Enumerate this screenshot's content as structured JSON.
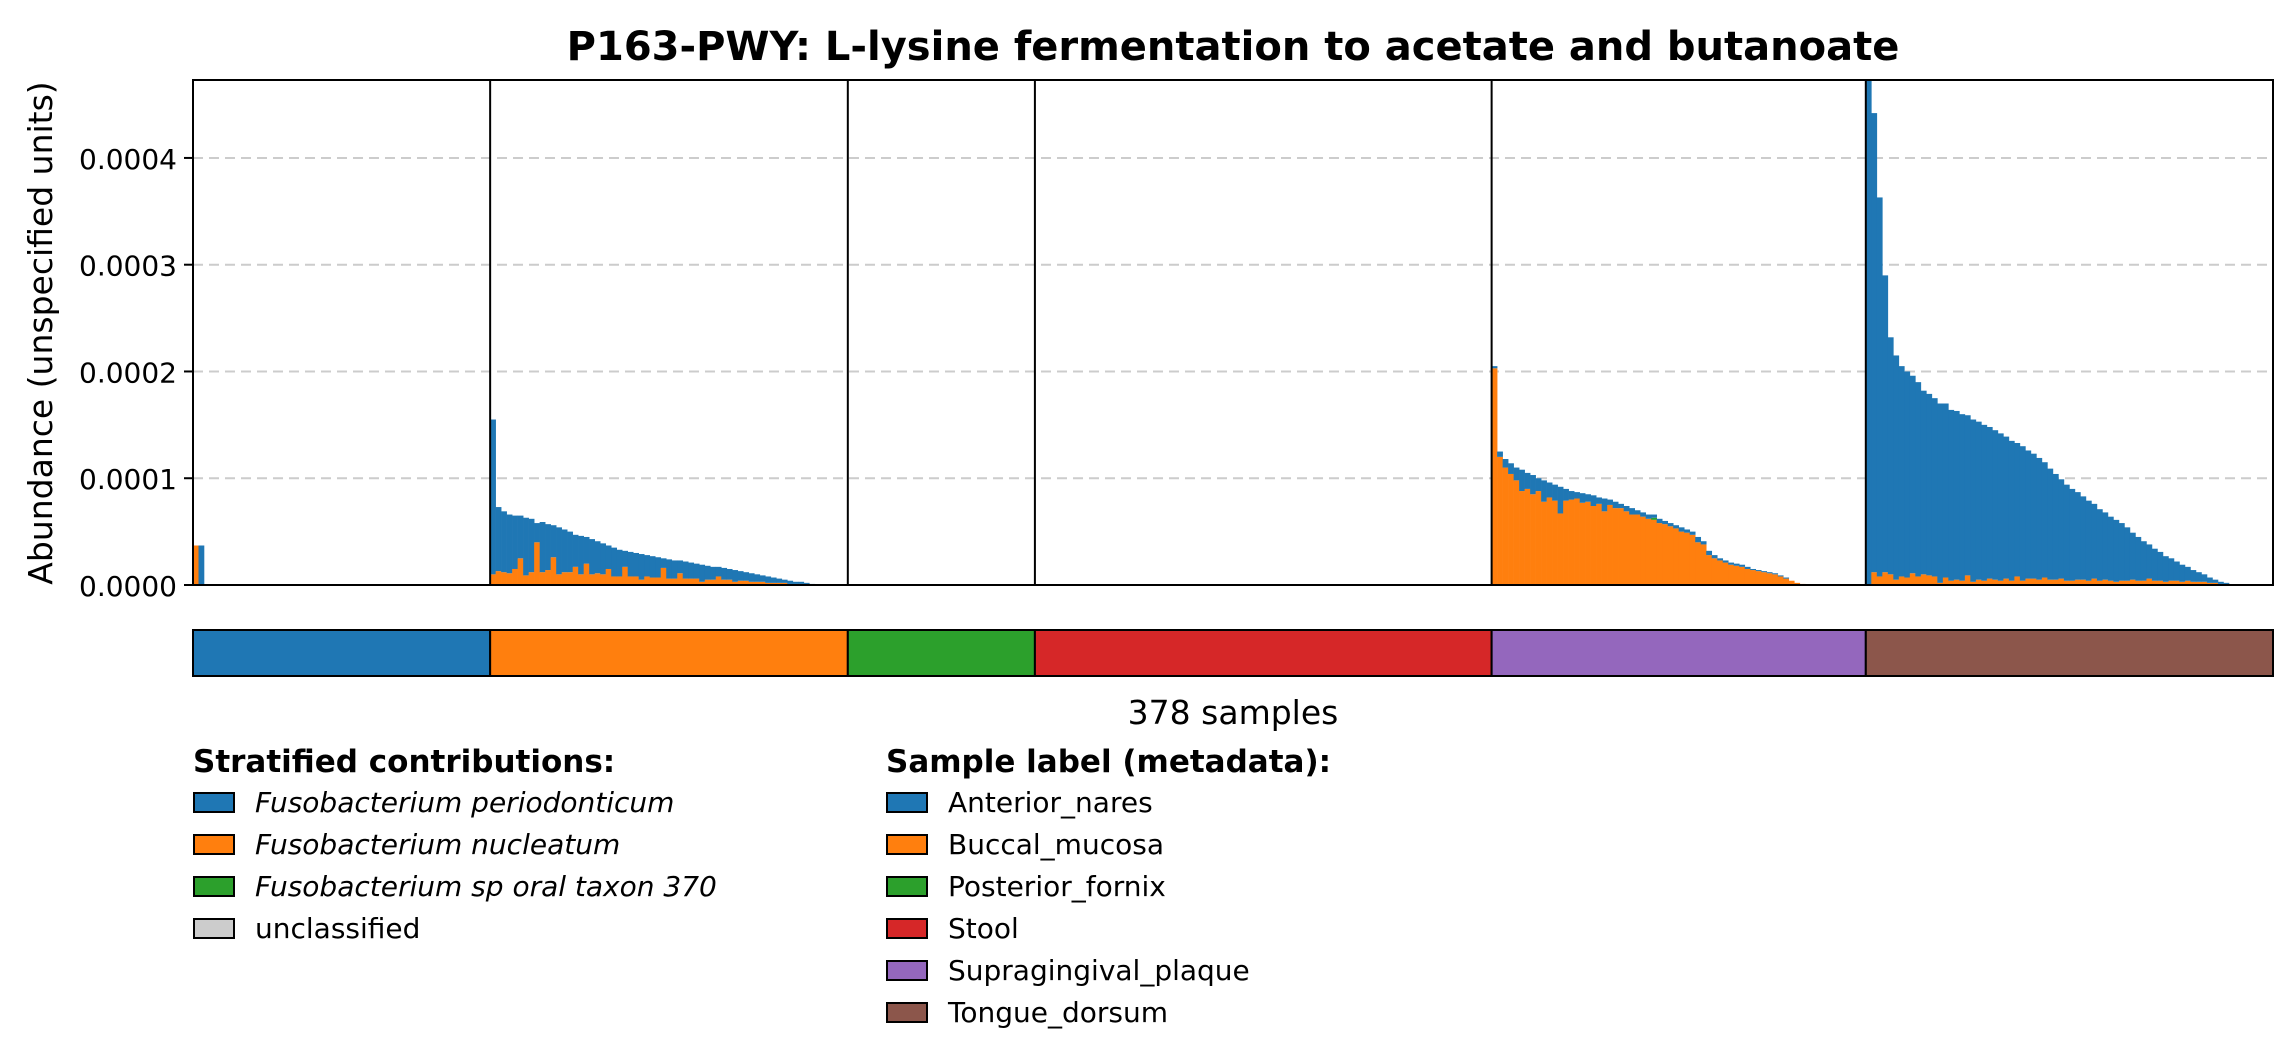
{
  "chart_data": {
    "type": "bar",
    "title": "P163-PWY: L-lysine fermentation to acetate and butanoate",
    "ylabel": "Abundance (unspecified units)",
    "xlabel": "378 samples",
    "ylim": [
      0,
      0.000473
    ],
    "yticks": [
      "0.0000",
      "0.0001",
      "0.0002",
      "0.0003",
      "0.0004"
    ],
    "grid": "y dashed",
    "stacked": true,
    "n_samples": 378,
    "legends": {
      "stratified_title": "Stratified contributions:",
      "metadata_title": "Sample label (metadata):"
    },
    "series": [
      {
        "name": "Fusobacterium periodonticum",
        "color": "#1f77b4",
        "italic": true
      },
      {
        "name": "Fusobacterium nucleatum",
        "color": "#ff7f0e",
        "italic": true
      },
      {
        "name": "Fusobacterium sp oral taxon 370",
        "color": "#2ca02c",
        "italic": true
      },
      {
        "name": "unclassified",
        "color": "#cccccc",
        "italic": false
      }
    ],
    "groups": [
      {
        "label": "Anterior_nares",
        "color": "#1f77b4",
        "n_samples": 54,
        "samples": [
          {
            "periodonticum": 0.0,
            "nucleatum": 3.7e-05
          },
          {
            "periodonticum": 3.7e-05,
            "nucleatum": 0.0
          }
        ]
      },
      {
        "label": "Buccal_mucosa",
        "color": "#ff7f0e",
        "n_samples": 65,
        "samples": [
          {
            "periodonticum": 0.000145,
            "nucleatum": 1e-05
          },
          {
            "periodonticum": 6e-05,
            "nucleatum": 1.3e-05
          },
          {
            "periodonticum": 5.7e-05,
            "nucleatum": 1.2e-05
          },
          {
            "periodonticum": 5.5e-05,
            "nucleatum": 1.1e-05
          },
          {
            "periodonticum": 5e-05,
            "nucleatum": 1.5e-05
          },
          {
            "periodonticum": 4e-05,
            "nucleatum": 2.5e-05
          },
          {
            "periodonticum": 5.4e-05,
            "nucleatum": 9e-06
          },
          {
            "periodonticum": 5e-05,
            "nucleatum": 1.2e-05
          },
          {
            "periodonticum": 1.8e-05,
            "nucleatum": 4e-05
          },
          {
            "periodonticum": 4.7e-05,
            "nucleatum": 1.2e-05
          },
          {
            "periodonticum": 4.3e-05,
            "nucleatum": 1.4e-05
          },
          {
            "periodonticum": 3e-05,
            "nucleatum": 2.6e-05
          },
          {
            "periodonticum": 4.4e-05,
            "nucleatum": 1e-05
          },
          {
            "periodonticum": 4e-05,
            "nucleatum": 1.2e-05
          },
          {
            "periodonticum": 3.8e-05,
            "nucleatum": 1.2e-05
          },
          {
            "periodonticum": 3e-05,
            "nucleatum": 1.7e-05
          },
          {
            "periodonticum": 3.6e-05,
            "nucleatum": 1e-05
          },
          {
            "periodonticum": 2.5e-05,
            "nucleatum": 2e-05
          },
          {
            "periodonticum": 3.3e-05,
            "nucleatum": 1e-05
          },
          {
            "periodonticum": 3e-05,
            "nucleatum": 1.1e-05
          },
          {
            "periodonticum": 2.9e-05,
            "nucleatum": 1e-05
          },
          {
            "periodonticum": 2.2e-05,
            "nucleatum": 1.5e-05
          },
          {
            "periodonticum": 2.7e-05,
            "nucleatum": 8e-06
          },
          {
            "periodonticum": 2.5e-05,
            "nucleatum": 8e-06
          },
          {
            "periodonticum": 1.5e-05,
            "nucleatum": 1.7e-05
          },
          {
            "periodonticum": 2.3e-05,
            "nucleatum": 8e-06
          },
          {
            "periodonticum": 2.2e-05,
            "nucleatum": 8e-06
          },
          {
            "periodonticum": 2.4e-05,
            "nucleatum": 5e-06
          },
          {
            "periodonticum": 2e-05,
            "nucleatum": 8e-06
          },
          {
            "periodonticum": 2e-05,
            "nucleatum": 7e-06
          },
          {
            "periodonticum": 1.9e-05,
            "nucleatum": 7e-06
          },
          {
            "periodonticum": 9e-06,
            "nucleatum": 1.6e-05
          },
          {
            "periodonticum": 1.8e-05,
            "nucleatum": 6e-06
          },
          {
            "periodonticum": 1.7e-05,
            "nucleatum": 6e-06
          },
          {
            "periodonticum": 1.2e-05,
            "nucleatum": 1.1e-05
          },
          {
            "periodonticum": 1.6e-05,
            "nucleatum": 6e-06
          },
          {
            "periodonticum": 1.5e-05,
            "nucleatum": 6e-06
          },
          {
            "periodonticum": 1.4e-05,
            "nucleatum": 6e-06
          },
          {
            "periodonticum": 1.6e-05,
            "nucleatum": 3e-06
          },
          {
            "periodonticum": 1.3e-05,
            "nucleatum": 5e-06
          },
          {
            "periodonticum": 1.2e-05,
            "nucleatum": 5e-06
          },
          {
            "periodonticum": 9e-06,
            "nucleatum": 8e-06
          },
          {
            "periodonticum": 1.1e-05,
            "nucleatum": 5e-06
          },
          {
            "periodonticum": 1e-05,
            "nucleatum": 5e-06
          },
          {
            "periodonticum": 1.1e-05,
            "nucleatum": 3e-06
          },
          {
            "periodonticum": 9e-06,
            "nucleatum": 4e-06
          },
          {
            "periodonticum": 8e-06,
            "nucleatum": 4e-06
          },
          {
            "periodonticum": 8e-06,
            "nucleatum": 3e-06
          },
          {
            "periodonticum": 7e-06,
            "nucleatum": 3e-06
          },
          {
            "periodonticum": 6e-06,
            "nucleatum": 3e-06
          },
          {
            "periodonticum": 6e-06,
            "nucleatum": 2e-06
          },
          {
            "periodonticum": 5e-06,
            "nucleatum": 2e-06
          },
          {
            "periodonticum": 4e-06,
            "nucleatum": 2e-06
          },
          {
            "periodonticum": 3e-06,
            "nucleatum": 2e-06
          },
          {
            "periodonticum": 3e-06,
            "nucleatum": 1e-06
          },
          {
            "periodonticum": 2e-06,
            "nucleatum": 1e-06
          },
          {
            "periodonticum": 2e-06,
            "nucleatum": 1e-06
          },
          {
            "periodonticum": 1e-06,
            "nucleatum": 1e-06
          },
          {
            "periodonticum": 1e-06,
            "nucleatum": 0.0
          }
        ]
      },
      {
        "label": "Posterior_fornix",
        "color": "#2ca02c",
        "n_samples": 34,
        "samples": []
      },
      {
        "label": "Stool",
        "color": "#d62728",
        "n_samples": 83,
        "samples": []
      },
      {
        "label": "Supragingival_plaque",
        "color": "#9467bd",
        "n_samples": 68,
        "samples": [
          {
            "periodonticum": 2e-06,
            "nucleatum": 0.000203
          },
          {
            "periodonticum": 5e-06,
            "nucleatum": 0.00012
          },
          {
            "periodonticum": 8e-06,
            "nucleatum": 0.00011
          },
          {
            "periodonticum": 1e-05,
            "nucleatum": 0.000104
          },
          {
            "periodonticum": 1.2e-05,
            "nucleatum": 9.8e-05
          },
          {
            "periodonticum": 2e-05,
            "nucleatum": 8.8e-05
          },
          {
            "periodonticum": 1.5e-05,
            "nucleatum": 9e-05
          },
          {
            "periodonticum": 1.8e-05,
            "nucleatum": 8.5e-05
          },
          {
            "periodonticum": 1.2e-05,
            "nucleatum": 8.8e-05
          },
          {
            "periodonticum": 2e-05,
            "nucleatum": 7.8e-05
          },
          {
            "periodonticum": 1.4e-05,
            "nucleatum": 8.2e-05
          },
          {
            "periodonticum": 1.5e-05,
            "nucleatum": 7.9e-05
          },
          {
            "periodonticum": 2.5e-05,
            "nucleatum": 6.7e-05
          },
          {
            "periodonticum": 1.1e-05,
            "nucleatum": 7.9e-05
          },
          {
            "periodonticum": 8e-06,
            "nucleatum": 8e-05
          },
          {
            "periodonticum": 6e-06,
            "nucleatum": 8.1e-05
          },
          {
            "periodonticum": 9e-06,
            "nucleatum": 7.7e-05
          },
          {
            "periodonticum": 7e-06,
            "nucleatum": 7.8e-05
          },
          {
            "periodonticum": 1e-05,
            "nucleatum": 7.4e-05
          },
          {
            "periodonticum": 6e-06,
            "nucleatum": 7.6e-05
          },
          {
            "periodonticum": 1.2e-05,
            "nucleatum": 6.9e-05
          },
          {
            "periodonticum": 5e-06,
            "nucleatum": 7.5e-05
          },
          {
            "periodonticum": 6e-06,
            "nucleatum": 7.2e-05
          },
          {
            "periodonticum": 4e-06,
            "nucleatum": 7.2e-05
          },
          {
            "periodonticum": 5e-06,
            "nucleatum": 6.9e-05
          },
          {
            "periodonticum": 6e-06,
            "nucleatum": 6.6e-05
          },
          {
            "periodonticum": 4e-06,
            "nucleatum": 6.6e-05
          },
          {
            "periodonticum": 4e-06,
            "nucleatum": 6.4e-05
          },
          {
            "periodonticum": 4e-06,
            "nucleatum": 6.2e-05
          },
          {
            "periodonticum": 3e-06,
            "nucleatum": 6.1e-05,
            "sp_oral_taxon_370": 2e-06
          },
          {
            "periodonticum": 4e-06,
            "nucleatum": 5.8e-05
          },
          {
            "periodonticum": 3e-06,
            "nucleatum": 5.7e-05
          },
          {
            "periodonticum": 3e-06,
            "nucleatum": 5.5e-05
          },
          {
            "periodonticum": 3e-06,
            "nucleatum": 5.3e-05
          },
          {
            "periodonticum": 4e-06,
            "nucleatum": 5e-05
          },
          {
            "periodonticum": 3e-06,
            "nucleatum": 4.9e-05
          },
          {
            "periodonticum": 3e-06,
            "nucleatum": 4.7e-05
          },
          {
            "periodonticum": 5e-06,
            "nucleatum": 4e-05
          },
          {
            "periodonticum": 3e-06,
            "nucleatum": 3.8e-05
          },
          {
            "periodonticum": 4e-06,
            "nucleatum": 2.8e-05
          },
          {
            "periodonticum": 3e-06,
            "nucleatum": 2.5e-05
          },
          {
            "periodonticum": 2e-06,
            "nucleatum": 2.3e-05
          },
          {
            "periodonticum": 2e-06,
            "nucleatum": 2.1e-05
          },
          {
            "periodonticum": 2e-06,
            "nucleatum": 1.9e-05
          },
          {
            "periodonticum": 2e-06,
            "nucleatum": 1.8e-05
          },
          {
            "periodonticum": 2e-06,
            "nucleatum": 1.7e-05
          },
          {
            "periodonticum": 2e-06,
            "nucleatum": 1.5e-05
          },
          {
            "periodonticum": 1e-06,
            "nucleatum": 1.4e-05
          },
          {
            "periodonticum": 1e-06,
            "nucleatum": 1.3e-05
          },
          {
            "periodonticum": 1e-06,
            "nucleatum": 1.2e-05
          },
          {
            "periodonticum": 1e-06,
            "nucleatum": 1.1e-05
          },
          {
            "periodonticum": 1e-06,
            "nucleatum": 1e-05
          },
          {
            "periodonticum": 1e-06,
            "nucleatum": 8e-06
          },
          {
            "periodonticum": 1e-06,
            "nucleatum": 6e-06
          },
          {
            "periodonticum": 0.0,
            "nucleatum": 4e-06
          },
          {
            "periodonticum": 0.0,
            "nucleatum": 2e-06
          },
          {
            "periodonticum": 0.0,
            "nucleatum": 1e-06
          }
        ]
      },
      {
        "label": "Tongue_dorsum",
        "color": "#8c564b",
        "n_samples": 74,
        "samples": [
          {
            "periodonticum": 0.000473,
            "nucleatum": 0.0
          },
          {
            "periodonticum": 0.00043,
            "nucleatum": 1.2e-05
          },
          {
            "periodonticum": 0.000355,
            "nucleatum": 8e-06
          },
          {
            "periodonticum": 0.000278,
            "nucleatum": 1.2e-05
          },
          {
            "periodonticum": 0.000222,
            "nucleatum": 1e-05
          },
          {
            "periodonticum": 0.00021,
            "nucleatum": 5e-06
          },
          {
            "periodonticum": 0.000197,
            "nucleatum": 8e-06
          },
          {
            "periodonticum": 0.000193,
            "nucleatum": 7e-06
          },
          {
            "periodonticum": 0.000185,
            "nucleatum": 1.1e-05
          },
          {
            "periodonticum": 0.000182,
            "nucleatum": 8e-06
          },
          {
            "periodonticum": 0.000172,
            "nucleatum": 1e-05
          },
          {
            "periodonticum": 0.00017,
            "nucleatum": 9e-06
          },
          {
            "periodonticum": 0.000167,
            "nucleatum": 8e-06
          },
          {
            "periodonticum": 0.000168,
            "nucleatum": 2e-06
          },
          {
            "periodonticum": 0.000163,
            "nucleatum": 7e-06
          },
          {
            "periodonticum": 0.00016,
            "nucleatum": 4e-06
          },
          {
            "periodonticum": 0.000158,
            "nucleatum": 5e-06
          },
          {
            "periodonticum": 0.000156,
            "nucleatum": 4e-06
          },
          {
            "periodonticum": 0.00015,
            "nucleatum": 9e-06
          },
          {
            "periodonticum": 0.000152,
            "nucleatum": 3e-06
          },
          {
            "periodonticum": 0.000148,
            "nucleatum": 5e-06
          },
          {
            "periodonticum": 0.000146,
            "nucleatum": 4e-06
          },
          {
            "periodonticum": 0.000142,
            "nucleatum": 6e-06
          },
          {
            "periodonticum": 0.00014,
            "nucleatum": 5e-06
          },
          {
            "periodonticum": 0.000138,
            "nucleatum": 4e-06
          },
          {
            "periodonticum": 0.000133,
            "nucleatum": 6e-06
          },
          {
            "periodonticum": 0.000131,
            "nucleatum": 4e-06
          },
          {
            "periodonticum": 0.000125,
            "nucleatum": 8e-06
          },
          {
            "periodonticum": 0.000126,
            "nucleatum": 4e-06
          },
          {
            "periodonticum": 0.00012,
            "nucleatum": 6e-06
          },
          {
            "periodonticum": 0.000117,
            "nucleatum": 6e-06
          },
          {
            "periodonticum": 0.000114,
            "nucleatum": 5e-06
          },
          {
            "periodonticum": 0.000108,
            "nucleatum": 7e-06
          },
          {
            "periodonticum": 0.000104,
            "nucleatum": 5e-06
          },
          {
            "periodonticum": 9.9e-05,
            "nucleatum": 5e-06
          },
          {
            "periodonticum": 9.3e-05,
            "nucleatum": 6e-06
          },
          {
            "periodonticum": 9e-05,
            "nucleatum": 4e-06
          },
          {
            "periodonticum": 8.6e-05,
            "nucleatum": 4e-06
          },
          {
            "periodonticum": 8.2e-05,
            "nucleatum": 5e-06
          },
          {
            "periodonticum": 7.8e-05,
            "nucleatum": 5e-06
          },
          {
            "periodonticum": 7.5e-05,
            "nucleatum": 4e-06
          },
          {
            "periodonticum": 7e-05,
            "nucleatum": 6e-06
          },
          {
            "periodonticum": 6.7e-05,
            "nucleatum": 4e-06
          },
          {
            "periodonticum": 6.3e-05,
            "nucleatum": 5e-06
          },
          {
            "periodonticum": 6e-05,
            "nucleatum": 4e-06
          },
          {
            "periodonticum": 5.8e-05,
            "nucleatum": 3e-06
          },
          {
            "periodonticum": 5.4e-05,
            "nucleatum": 4e-06
          },
          {
            "periodonticum": 5e-05,
            "nucleatum": 4e-06
          },
          {
            "periodonticum": 4.4e-05,
            "nucleatum": 5e-06
          },
          {
            "periodonticum": 4.1e-05,
            "nucleatum": 4e-06
          },
          {
            "periodonticum": 3.7e-05,
            "nucleatum": 4e-06
          },
          {
            "periodonticum": 3.2e-05,
            "nucleatum": 6e-06
          },
          {
            "periodonticum": 3e-05,
            "nucleatum": 4e-06
          },
          {
            "periodonticum": 2.7e-05,
            "nucleatum": 4e-06
          },
          {
            "periodonticum": 2.4e-05,
            "nucleatum": 3e-06
          },
          {
            "periodonticum": 2.1e-05,
            "nucleatum": 4e-06
          },
          {
            "periodonticum": 1.8e-05,
            "nucleatum": 4e-06
          },
          {
            "periodonticum": 1.6e-05,
            "nucleatum": 3e-06
          },
          {
            "periodonticum": 1.3e-05,
            "nucleatum": 4e-06
          },
          {
            "periodonticum": 1.1e-05,
            "nucleatum": 3e-06
          },
          {
            "periodonticum": 9e-06,
            "nucleatum": 3e-06
          },
          {
            "periodonticum": 7e-06,
            "nucleatum": 3e-06
          },
          {
            "periodonticum": 5e-06,
            "nucleatum": 2e-06
          },
          {
            "periodonticum": 3e-06,
            "nucleatum": 2e-06
          },
          {
            "periodonticum": 2e-06,
            "nucleatum": 1e-06
          },
          {
            "periodonticum": 1e-06,
            "nucleatum": 1e-06
          }
        ]
      }
    ]
  }
}
